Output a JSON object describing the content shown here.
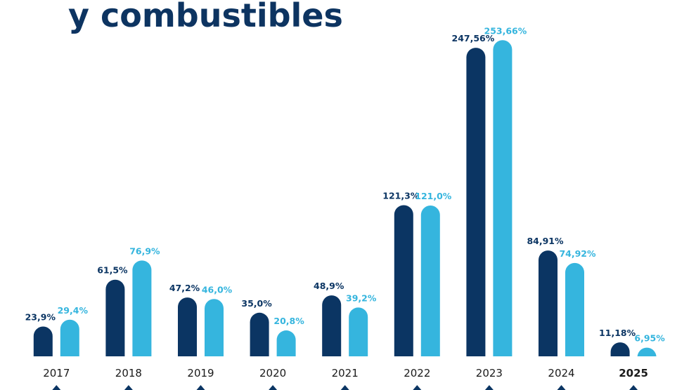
{
  "chart_data": {
    "type": "bar",
    "title": "y combustibles",
    "categories": [
      "2017",
      "2018",
      "2019",
      "2020",
      "2021",
      "2022",
      "2023",
      "2024",
      "2025"
    ],
    "series": [
      {
        "color": "#0b3563",
        "values": [
          23.9,
          61.5,
          47.2,
          35.0,
          48.9,
          121.3,
          247.56,
          84.91,
          11.18
        ],
        "value_labels": [
          "23,9%",
          "61,5%",
          "47,2%",
          "35,0%",
          "48,9%",
          "121,3%",
          "247,56%",
          "84,91%",
          "11,18%"
        ]
      },
      {
        "color": "#35b5de",
        "values": [
          29.4,
          76.9,
          46.0,
          20.8,
          39.2,
          121.0,
          253.66,
          74.92,
          6.95
        ],
        "value_labels": [
          "29,4%",
          "76,9%",
          "46,0%",
          "20,8%",
          "39,2%",
          "121,0%",
          "253,66%",
          "74,92%",
          "6,95%"
        ]
      }
    ],
    "ylim": [
      0,
      260
    ]
  }
}
